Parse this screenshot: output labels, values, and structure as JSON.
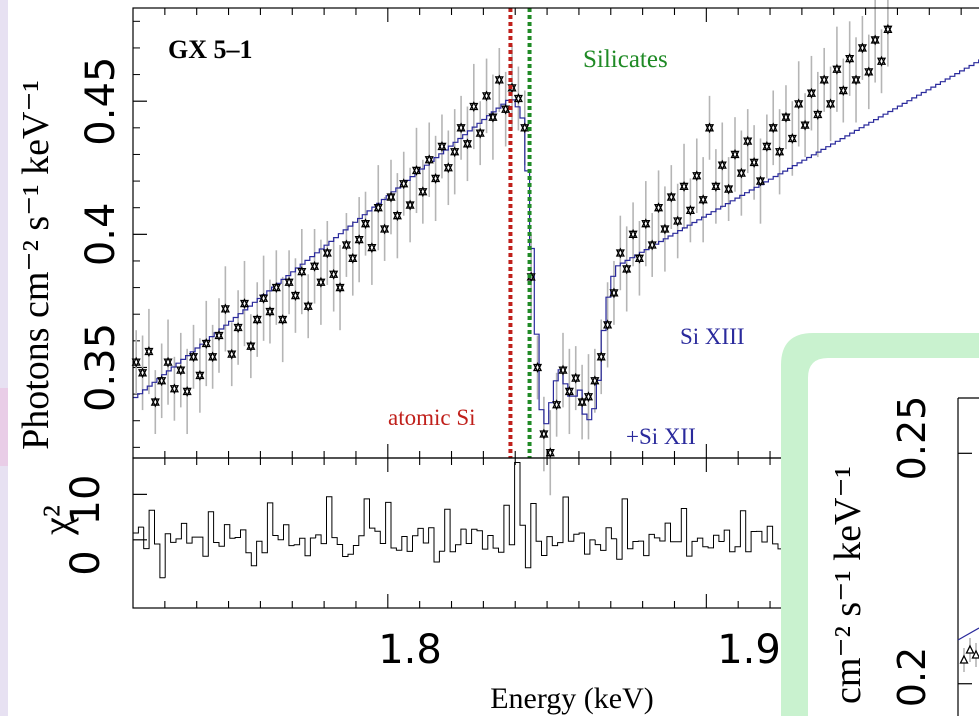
{
  "colors": {
    "background": "#ffffff",
    "left_strip": "#e7e1f2",
    "left_strip_accent": "#e9cde7",
    "axes": "#000000",
    "data_points": "#000000",
    "error_bars": "#b5b5b5",
    "model": "#2a2a9c",
    "atomic_marker": "#c0201b",
    "silicate_marker": "#1f8a25",
    "inset_panel": "#c9f2cf"
  },
  "chart_data": [
    {
      "type": "scatter",
      "panel": "spectrum",
      "source_label": "GX 5–1",
      "ylabel": "Photons cm⁻² s⁻¹ keV⁻¹",
      "xlim": [
        1.72,
        1.99
      ],
      "ylim": [
        0.316,
        0.485
      ],
      "y_ticks": [
        "0.35",
        "0.4",
        "0.45"
      ],
      "y_tick_values": [
        0.35,
        0.4,
        0.45
      ],
      "x_ticks_values": [
        1.8,
        1.9
      ],
      "markers": [
        {
          "name": "atomic Si",
          "x": 1.8385,
          "style": "dotted",
          "color": "#c0201b"
        },
        {
          "name": "Silicates",
          "x": 1.8445,
          "style": "dotted",
          "color": "#1f8a25"
        }
      ],
      "annotations": [
        "Si XIII",
        "+Si XII"
      ],
      "model_knots": [
        [
          1.72,
          0.338
        ],
        [
          1.8385,
          0.451
        ],
        [
          1.84,
          0.45
        ],
        [
          1.8425,
          0.443
        ],
        [
          1.844,
          0.42
        ],
        [
          1.845,
          0.4
        ],
        [
          1.8465,
          0.368
        ],
        [
          1.848,
          0.335
        ],
        [
          1.85,
          0.328
        ],
        [
          1.852,
          0.342
        ],
        [
          1.854,
          0.35
        ],
        [
          1.856,
          0.343
        ],
        [
          1.858,
          0.337
        ],
        [
          1.86,
          0.343
        ],
        [
          1.862,
          0.331
        ],
        [
          1.864,
          0.33
        ],
        [
          1.866,
          0.342
        ],
        [
          1.868,
          0.367
        ],
        [
          1.87,
          0.382
        ],
        [
          1.872,
          0.388
        ],
        [
          1.99,
          0.468
        ]
      ],
      "points": [
        [
          1.721,
          0.352
        ],
        [
          1.723,
          0.348
        ],
        [
          1.725,
          0.356
        ],
        [
          1.727,
          0.337
        ],
        [
          1.729,
          0.345
        ],
        [
          1.731,
          0.352
        ],
        [
          1.733,
          0.342
        ],
        [
          1.735,
          0.349
        ],
        [
          1.737,
          0.341
        ],
        [
          1.739,
          0.354
        ],
        [
          1.741,
          0.347
        ],
        [
          1.743,
          0.359
        ],
        [
          1.745,
          0.354
        ],
        [
          1.747,
          0.362
        ],
        [
          1.749,
          0.372
        ],
        [
          1.751,
          0.355
        ],
        [
          1.753,
          0.365
        ],
        [
          1.755,
          0.374
        ],
        [
          1.757,
          0.358
        ],
        [
          1.759,
          0.368
        ],
        [
          1.761,
          0.376
        ],
        [
          1.763,
          0.371
        ],
        [
          1.765,
          0.38
        ],
        [
          1.767,
          0.368
        ],
        [
          1.769,
          0.382
        ],
        [
          1.771,
          0.377
        ],
        [
          1.773,
          0.386
        ],
        [
          1.775,
          0.373
        ],
        [
          1.777,
          0.388
        ],
        [
          1.779,
          0.382
        ],
        [
          1.781,
          0.393
        ],
        [
          1.783,
          0.385
        ],
        [
          1.785,
          0.38
        ],
        [
          1.787,
          0.396
        ],
        [
          1.789,
          0.391
        ],
        [
          1.791,
          0.398
        ],
        [
          1.793,
          0.404
        ],
        [
          1.795,
          0.395
        ],
        [
          1.797,
          0.41
        ],
        [
          1.799,
          0.402
        ],
        [
          1.801,
          0.414
        ],
        [
          1.803,
          0.407
        ],
        [
          1.805,
          0.419
        ],
        [
          1.807,
          0.411
        ],
        [
          1.809,
          0.424
        ],
        [
          1.811,
          0.416
        ],
        [
          1.813,
          0.428
        ],
        [
          1.815,
          0.421
        ],
        [
          1.817,
          0.433
        ],
        [
          1.819,
          0.425
        ],
        [
          1.821,
          0.431
        ],
        [
          1.823,
          0.44
        ],
        [
          1.825,
          0.434
        ],
        [
          1.827,
          0.448
        ],
        [
          1.829,
          0.438
        ],
        [
          1.831,
          0.452
        ],
        [
          1.833,
          0.444
        ],
        [
          1.835,
          0.458
        ],
        [
          1.837,
          0.447
        ],
        [
          1.839,
          0.455
        ],
        [
          1.841,
          0.451
        ],
        [
          1.843,
          0.44
        ],
        [
          1.845,
          0.384
        ],
        [
          1.847,
          0.35
        ],
        [
          1.849,
          0.325
        ],
        [
          1.851,
          0.318
        ],
        [
          1.853,
          0.336
        ],
        [
          1.855,
          0.349
        ],
        [
          1.857,
          0.341
        ],
        [
          1.859,
          0.346
        ],
        [
          1.861,
          0.337
        ],
        [
          1.863,
          0.339
        ],
        [
          1.865,
          0.345
        ],
        [
          1.867,
          0.354
        ],
        [
          1.869,
          0.366
        ],
        [
          1.871,
          0.378
        ],
        [
          1.873,
          0.393
        ],
        [
          1.875,
          0.387
        ],
        [
          1.877,
          0.4
        ],
        [
          1.879,
          0.391
        ],
        [
          1.881,
          0.404
        ],
        [
          1.883,
          0.396
        ],
        [
          1.885,
          0.41
        ],
        [
          1.887,
          0.402
        ],
        [
          1.889,
          0.414
        ],
        [
          1.891,
          0.405
        ],
        [
          1.893,
          0.418
        ],
        [
          1.895,
          0.409
        ],
        [
          1.897,
          0.422
        ],
        [
          1.899,
          0.413
        ],
        [
          1.901,
          0.44
        ],
        [
          1.903,
          0.418
        ],
        [
          1.905,
          0.426
        ],
        [
          1.907,
          0.417
        ],
        [
          1.909,
          0.43
        ],
        [
          1.911,
          0.423
        ],
        [
          1.913,
          0.435
        ],
        [
          1.915,
          0.427
        ],
        [
          1.917,
          0.42
        ],
        [
          1.919,
          0.433
        ],
        [
          1.921,
          0.44
        ],
        [
          1.923,
          0.431
        ],
        [
          1.925,
          0.444
        ],
        [
          1.927,
          0.436
        ],
        [
          1.929,
          0.449
        ],
        [
          1.931,
          0.441
        ],
        [
          1.933,
          0.453
        ],
        [
          1.935,
          0.445
        ],
        [
          1.937,
          0.458
        ],
        [
          1.939,
          0.449
        ],
        [
          1.941,
          0.462
        ],
        [
          1.943,
          0.454
        ],
        [
          1.945,
          0.466
        ],
        [
          1.947,
          0.458
        ],
        [
          1.949,
          0.47
        ],
        [
          1.951,
          0.461
        ],
        [
          1.953,
          0.473
        ],
        [
          1.955,
          0.465
        ],
        [
          1.957,
          0.477
        ]
      ]
    },
    {
      "type": "line",
      "panel": "residuals",
      "ylabel": "χ²",
      "xlabel": "Energy (keV)",
      "xlim": [
        1.72,
        1.99
      ],
      "ylim": [
        -15,
        18
      ],
      "y_ticks": [
        "0",
        "10"
      ],
      "y_tick_values": [
        0,
        10
      ],
      "x_ticks": [
        "1.8",
        "1.9"
      ],
      "x_tick_values": [
        1.8,
        1.9
      ]
    },
    {
      "type": "scatter",
      "panel": "inset",
      "ylabel": "cm⁻² s⁻¹ keV⁻¹",
      "y_ticks": [
        "0.25",
        "0.2"
      ],
      "y_tick_values": [
        0.25,
        0.2
      ],
      "ylim": [
        0.193,
        0.262
      ]
    }
  ]
}
